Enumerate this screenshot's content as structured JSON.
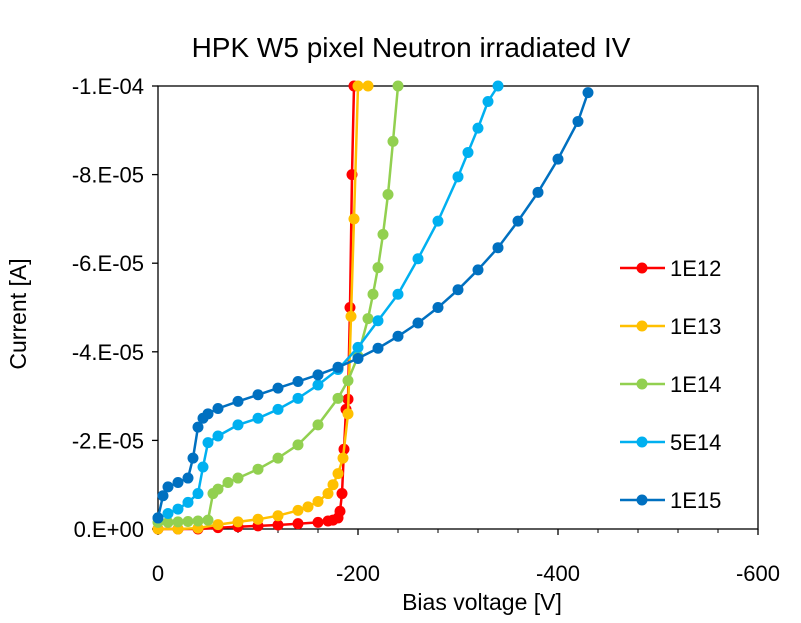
{
  "chart_data": {
    "type": "scatter",
    "title": "HPK W5 pixel Neutron irradiated IV",
    "xlabel": "Bias voltage [V]",
    "ylabel": "Current [A]",
    "xlim": [
      0,
      -600
    ],
    "ylim": [
      0,
      -0.0001
    ],
    "xticks": [
      0,
      -200,
      -400,
      -600
    ],
    "xtick_labels": [
      "0",
      "-200",
      "-400",
      "-600"
    ],
    "yticks": [
      0,
      -2e-05,
      -4e-05,
      -6e-05,
      -8e-05,
      -0.0001
    ],
    "ytick_labels": [
      "0.E+00",
      "-2.E-05",
      "-4.E-05",
      "-6.E-05",
      "-8.E-05",
      "-1.E-04"
    ],
    "grid": false,
    "legend_position": "right",
    "series": [
      {
        "name": "1E12",
        "color": "#ff0000",
        "x": [
          0,
          -20,
          -40,
          -60,
          -80,
          -100,
          -120,
          -140,
          -160,
          -170,
          -175,
          -180,
          -182,
          -184,
          -186,
          -188,
          -190,
          -192,
          -194,
          -196
        ],
        "y": [
          0,
          0,
          0,
          -3e-07,
          -5e-07,
          -7e-07,
          -9e-07,
          -1.2e-06,
          -1.5e-06,
          -1.8e-06,
          -2e-06,
          -2.5e-06,
          -4e-06,
          -8e-06,
          -1.8e-05,
          -2.7e-05,
          -2.93e-05,
          -5e-05,
          -8e-05,
          -0.0001
        ]
      },
      {
        "name": "1E13",
        "color": "#ffc000",
        "x": [
          0,
          -20,
          -40,
          -60,
          -80,
          -100,
          -120,
          -140,
          -150,
          -160,
          -170,
          -175,
          -180,
          -185,
          -190,
          -193,
          -196,
          -200,
          -210
        ],
        "y": [
          0,
          0,
          -2e-07,
          -1e-06,
          -1.6e-06,
          -2.2e-06,
          -3e-06,
          -4.2e-06,
          -5e-06,
          -6.2e-06,
          -8e-06,
          -1e-05,
          -1.25e-05,
          -1.6e-05,
          -2.6e-05,
          -4.8e-05,
          -7e-05,
          -0.0001,
          -0.0001
        ]
      },
      {
        "name": "1E14",
        "color": "#92d050",
        "x": [
          0,
          -10,
          -20,
          -30,
          -40,
          -50,
          -55,
          -60,
          -70,
          -80,
          -100,
          -120,
          -140,
          -160,
          -180,
          -190,
          -200,
          -210,
          -215,
          -220,
          -225,
          -230,
          -235,
          -240
        ],
        "y": [
          -1.5e-06,
          -1.5e-06,
          -1.6e-06,
          -1.7e-06,
          -1.8e-06,
          -2e-06,
          -8e-06,
          -9e-06,
          -1.05e-05,
          -1.15e-05,
          -1.35e-05,
          -1.6e-05,
          -1.9e-05,
          -2.35e-05,
          -2.95e-05,
          -3.35e-05,
          -3.9e-05,
          -4.75e-05,
          -5.3e-05,
          -5.9e-05,
          -6.65e-05,
          -7.55e-05,
          -8.75e-05,
          -0.0001
        ]
      },
      {
        "name": "5E14",
        "color": "#00b0f0",
        "x": [
          0,
          -10,
          -20,
          -30,
          -40,
          -45,
          -50,
          -60,
          -80,
          -100,
          -120,
          -140,
          -160,
          -180,
          -200,
          -220,
          -240,
          -260,
          -280,
          -300,
          -310,
          -320,
          -330,
          -340
        ],
        "y": [
          -2.5e-06,
          -3.5e-06,
          -4.5e-06,
          -6e-06,
          -8e-06,
          -1.4e-05,
          -1.95e-05,
          -2.1e-05,
          -2.35e-05,
          -2.5e-05,
          -2.7e-05,
          -2.95e-05,
          -3.25e-05,
          -3.6e-05,
          -4.1e-05,
          -4.7e-05,
          -5.3e-05,
          -6.1e-05,
          -6.95e-05,
          -7.95e-05,
          -8.5e-05,
          -9.05e-05,
          -9.65e-05,
          -0.0001
        ]
      },
      {
        "name": "1E15",
        "color": "#0070c0",
        "x": [
          0,
          -5,
          -10,
          -20,
          -30,
          -35,
          -40,
          -45,
          -50,
          -60,
          -80,
          -100,
          -120,
          -140,
          -160,
          -180,
          -200,
          -220,
          -240,
          -260,
          -280,
          -300,
          -320,
          -340,
          -360,
          -380,
          -400,
          -420,
          -430
        ],
        "y": [
          -2.5e-06,
          -7.5e-06,
          -9.5e-06,
          -1.05e-05,
          -1.15e-05,
          -1.6e-05,
          -2.3e-05,
          -2.5e-05,
          -2.6e-05,
          -2.72e-05,
          -2.88e-05,
          -3.03e-05,
          -3.18e-05,
          -3.33e-05,
          -3.48e-05,
          -3.65e-05,
          -3.85e-05,
          -4.08e-05,
          -4.35e-05,
          -4.65e-05,
          -5e-05,
          -5.4e-05,
          -5.85e-05,
          -6.35e-05,
          -6.95e-05,
          -7.6e-05,
          -8.35e-05,
          -9.2e-05,
          -9.85e-05
        ]
      }
    ]
  }
}
